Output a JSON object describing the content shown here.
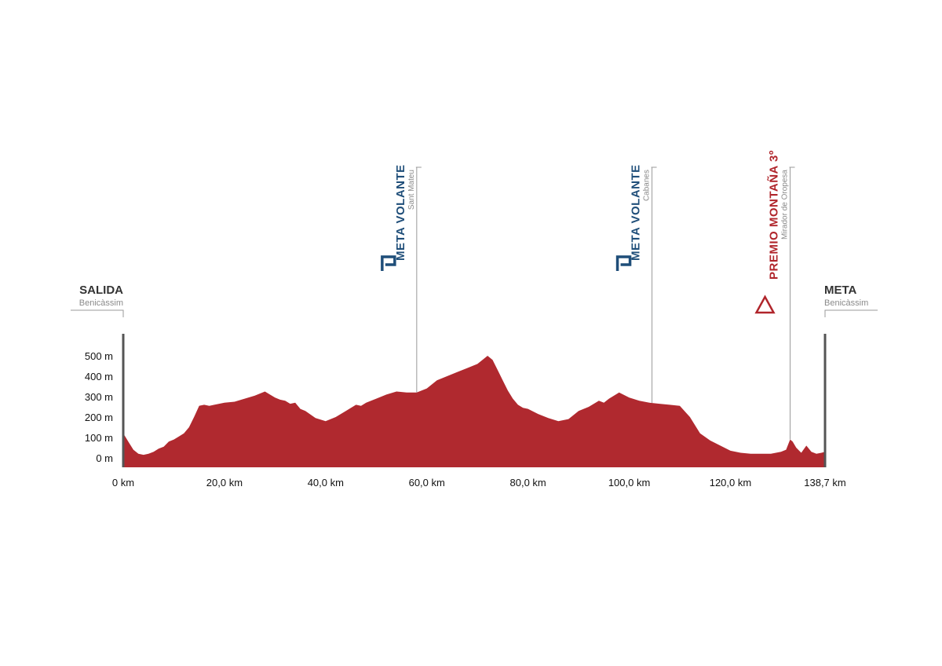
{
  "colors": {
    "profile_fill": "#b0292f",
    "axis": "#555555",
    "marker_line": "#9a9a9a",
    "sprint_blue": "#1f4e79",
    "mountain_red": "#b0252b"
  },
  "start": {
    "title": "SALIDA",
    "place": "Benicàssim"
  },
  "finish": {
    "title": "META",
    "place": "Benicàssim"
  },
  "markers": [
    {
      "type": "sprint",
      "icon": "sprint-p-icon",
      "title": "META VOLANTE",
      "place": "Sant Mateu",
      "km": 58.0
    },
    {
      "type": "sprint",
      "icon": "sprint-p-icon",
      "title": "META VOLANTE",
      "place": "Cabanes",
      "km": 104.5
    },
    {
      "type": "mountain",
      "icon": "mountain-triangle-icon",
      "title": "PREMIO MONTAÑA 3º",
      "place": "Mirador de Oropesa",
      "km": 131.8
    }
  ],
  "chart_data": {
    "type": "area",
    "xlabel": "",
    "ylabel": "",
    "xlim": [
      0,
      138.7
    ],
    "ylim": [
      0,
      500
    ],
    "y_ticks": [
      {
        "value": 0,
        "label": "0 m"
      },
      {
        "value": 100,
        "label": "100 m"
      },
      {
        "value": 200,
        "label": "200 m"
      },
      {
        "value": 300,
        "label": "300 m"
      },
      {
        "value": 400,
        "label": "400 m"
      },
      {
        "value": 500,
        "label": "500 m"
      }
    ],
    "x_ticks": [
      {
        "value": 0,
        "label": "0 km"
      },
      {
        "value": 20,
        "label": "20,0 km"
      },
      {
        "value": 40,
        "label": "40,0 km"
      },
      {
        "value": 60,
        "label": "60,0 km"
      },
      {
        "value": 80,
        "label": "80,0 km"
      },
      {
        "value": 100,
        "label": "100,0 km"
      },
      {
        "value": 120,
        "label": "120,0 km"
      },
      {
        "value": 138.7,
        "label": "138,7 km"
      }
    ],
    "series": [
      {
        "x": [
          0,
          1,
          2,
          3,
          4,
          5,
          6,
          7,
          8,
          9,
          10,
          11,
          12,
          13,
          14,
          15,
          16,
          17,
          18,
          20,
          22,
          24,
          26,
          28,
          29,
          30,
          31,
          32,
          33,
          34,
          35,
          36,
          38,
          40,
          42,
          44,
          46,
          47,
          48,
          50,
          52,
          54,
          56,
          58,
          60,
          62,
          64,
          66,
          68,
          70,
          71,
          72,
          73,
          74,
          75,
          76,
          77,
          78,
          79,
          80,
          82,
          84,
          86,
          88,
          90,
          92,
          94,
          95,
          96,
          98,
          100,
          102,
          104,
          106,
          108,
          110,
          112,
          114,
          116,
          118,
          120,
          122,
          124,
          126,
          128,
          129,
          130,
          131,
          131.8,
          132.3,
          133,
          134,
          135,
          136,
          137,
          138,
          138.7
        ],
        "y": [
          120,
          80,
          40,
          20,
          15,
          20,
          30,
          45,
          55,
          80,
          90,
          105,
          120,
          150,
          200,
          255,
          260,
          255,
          260,
          270,
          275,
          290,
          305,
          325,
          310,
          295,
          285,
          280,
          265,
          270,
          240,
          230,
          195,
          180,
          200,
          230,
          260,
          255,
          270,
          290,
          310,
          325,
          320,
          320,
          340,
          380,
          400,
          420,
          440,
          460,
          480,
          500,
          480,
          430,
          380,
          330,
          290,
          260,
          245,
          240,
          215,
          195,
          180,
          190,
          230,
          250,
          280,
          270,
          290,
          320,
          295,
          280,
          270,
          265,
          260,
          255,
          200,
          120,
          85,
          60,
          35,
          25,
          20,
          20,
          20,
          25,
          30,
          40,
          90,
          80,
          50,
          25,
          60,
          30,
          20,
          25,
          30
        ]
      }
    ]
  }
}
